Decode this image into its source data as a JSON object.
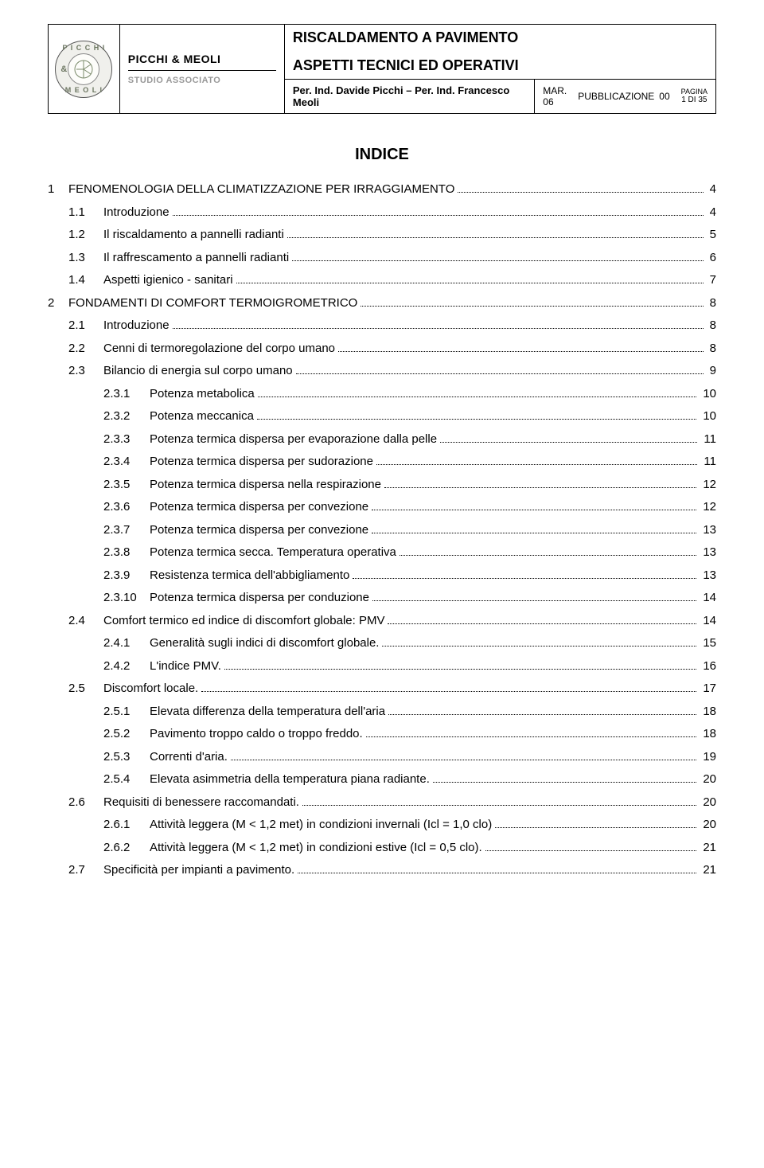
{
  "header": {
    "brand_name": "PICCHI & MEOLI",
    "brand_sub": "STUDIO ASSOCIATO",
    "logo_top": "P I C C H I",
    "logo_bottom": "M E O L I",
    "logo_amp": "&",
    "title_line1": "RISCALDAMENTO A PAVIMENTO",
    "title_line2": "ASPETTI TECNICI ED OPERATIVI",
    "authors": "Per. Ind. Davide Picchi – Per. Ind. Francesco Meoli",
    "meta_date": "MAR. 06",
    "meta_pub_label": "PUBBLICAZIONE",
    "meta_pub_value": "00",
    "meta_pagina_label": "PAGINA",
    "meta_pagina_value": "1 DI 35"
  },
  "indice_title": "INDICE",
  "toc": [
    {
      "level": 1,
      "num": "1",
      "label": "FENOMENOLOGIA DELLA CLIMATIZZAZIONE PER IRRAGGIAMENTO",
      "page": "4"
    },
    {
      "level": 2,
      "num": "1.1",
      "label": "Introduzione",
      "page": "4"
    },
    {
      "level": 2,
      "num": "1.2",
      "label": "Il riscaldamento a pannelli radianti",
      "page": "5"
    },
    {
      "level": 2,
      "num": "1.3",
      "label": "Il raffrescamento a pannelli radianti",
      "page": "6"
    },
    {
      "level": 2,
      "num": "1.4",
      "label": "Aspetti igienico - sanitari",
      "page": "7"
    },
    {
      "level": 1,
      "num": "2",
      "label": "FONDAMENTI DI COMFORT TERMOIGROMETRICO",
      "page": "8"
    },
    {
      "level": 2,
      "num": "2.1",
      "label": "Introduzione",
      "page": "8"
    },
    {
      "level": 2,
      "num": "2.2",
      "label": "Cenni di termoregolazione del corpo umano",
      "page": "8"
    },
    {
      "level": 2,
      "num": "2.3",
      "label": "Bilancio di energia sul corpo umano",
      "page": "9"
    },
    {
      "level": 3,
      "num": "2.3.1",
      "label": "Potenza metabolica",
      "page": "10"
    },
    {
      "level": 3,
      "num": "2.3.2",
      "label": "Potenza meccanica",
      "page": "10"
    },
    {
      "level": 3,
      "num": "2.3.3",
      "label": "Potenza termica dispersa per evaporazione dalla pelle",
      "page": "11"
    },
    {
      "level": 3,
      "num": "2.3.4",
      "label": "Potenza termica dispersa per sudorazione",
      "page": "11"
    },
    {
      "level": 3,
      "num": "2.3.5",
      "label": "Potenza termica dispersa nella respirazione",
      "page": "12"
    },
    {
      "level": 3,
      "num": "2.3.6",
      "label": "Potenza termica dispersa per convezione",
      "page": "12"
    },
    {
      "level": 3,
      "num": "2.3.7",
      "label": "Potenza termica dispersa per convezione",
      "page": "13"
    },
    {
      "level": 3,
      "num": "2.3.8",
      "label": "Potenza termica secca. Temperatura operativa",
      "page": "13"
    },
    {
      "level": 3,
      "num": "2.3.9",
      "label": "Resistenza termica dell'abbigliamento",
      "page": "13"
    },
    {
      "level": 3,
      "num": "2.3.10",
      "label": "Potenza termica dispersa per conduzione",
      "page": "14"
    },
    {
      "level": 2,
      "num": "2.4",
      "label": "Comfort termico ed indice di discomfort globale: PMV",
      "page": "14"
    },
    {
      "level": 3,
      "num": "2.4.1",
      "label": "Generalità sugli indici di discomfort globale.",
      "page": "15"
    },
    {
      "level": 3,
      "num": "2.4.2",
      "label": "L'indice PMV.",
      "page": "16"
    },
    {
      "level": 2,
      "num": "2.5",
      "label": "Discomfort locale.",
      "page": "17"
    },
    {
      "level": 3,
      "num": "2.5.1",
      "label": "Elevata differenza della temperatura dell'aria",
      "page": "18"
    },
    {
      "level": 3,
      "num": "2.5.2",
      "label": "Pavimento troppo caldo o troppo freddo.",
      "page": "18"
    },
    {
      "level": 3,
      "num": "2.5.3",
      "label": "Correnti d'aria.",
      "page": "19"
    },
    {
      "level": 3,
      "num": "2.5.4",
      "label": "Elevata asimmetria della temperatura piana radiante.",
      "page": "20"
    },
    {
      "level": 2,
      "num": "2.6",
      "label": "Requisiti di benessere raccomandati.",
      "page": "20"
    },
    {
      "level": 3,
      "num": "2.6.1",
      "label": "Attività leggera (M < 1,2 met)  in condizioni invernali (Icl = 1,0 clo)",
      "page": "20"
    },
    {
      "level": 3,
      "num": "2.6.2",
      "label": "Attività leggera (M < 1,2 met) in condizioni estive (Icl = 0,5 clo).",
      "page": "21"
    },
    {
      "level": 2,
      "num": "2.7",
      "label": "Specificità per impianti a pavimento.",
      "page": "21"
    }
  ]
}
